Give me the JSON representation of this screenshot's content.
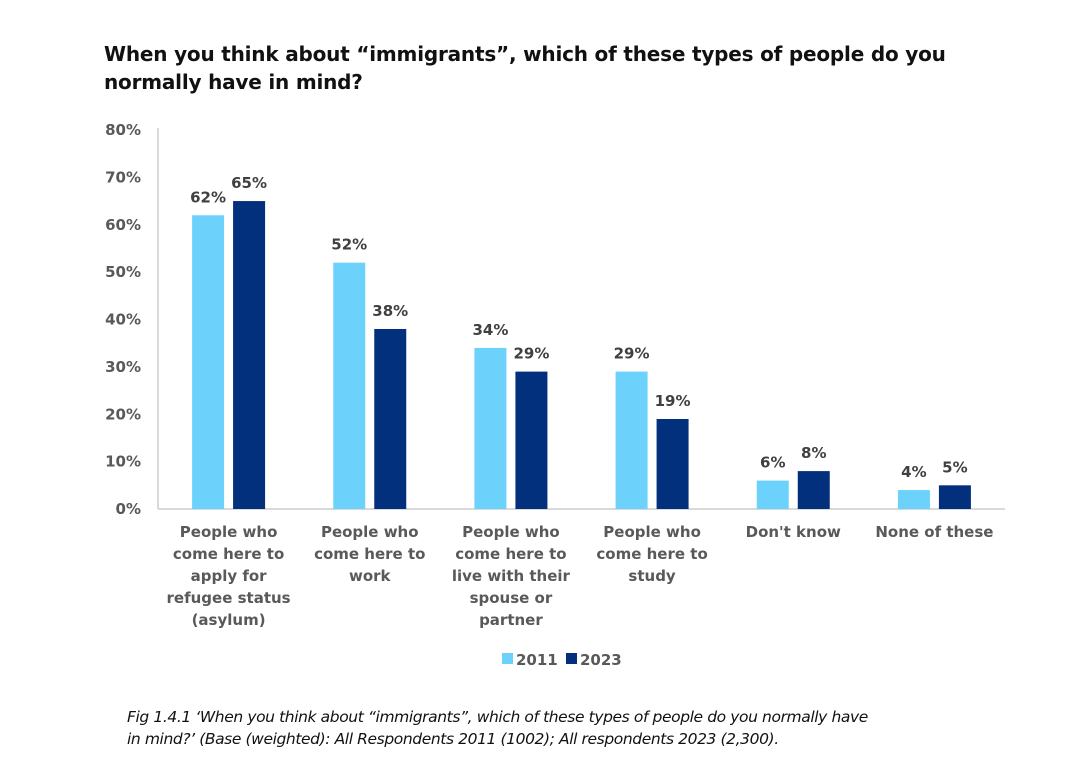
{
  "chart_data": {
    "type": "bar",
    "title": "When you think about “immigrants”, which of these types of people do you normally have in mind?",
    "xlabel": "",
    "ylabel": "",
    "ylim": [
      0,
      80
    ],
    "yticks": [
      0,
      10,
      20,
      30,
      40,
      50,
      60,
      70,
      80
    ],
    "ytick_labels": [
      "0%",
      "10%",
      "20%",
      "30%",
      "40%",
      "50%",
      "60%",
      "70%",
      "80%"
    ],
    "grid": false,
    "legend_position": "bottom",
    "categories": [
      [
        "People who",
        "come here to",
        "apply for",
        "refugee status",
        "(asylum)"
      ],
      [
        "People who",
        "come here to",
        "work"
      ],
      [
        "People who",
        "come here to",
        "live with their",
        "spouse or",
        "partner"
      ],
      [
        "People who",
        "come here to",
        "study"
      ],
      [
        "Don't know"
      ],
      [
        "None of these"
      ]
    ],
    "series": [
      {
        "name": "2011",
        "color": "#6cd2fc",
        "values": [
          62,
          52,
          34,
          29,
          6,
          4
        ],
        "labels": [
          "62%",
          "52%",
          "34%",
          "29%",
          "6%",
          "4%"
        ]
      },
      {
        "name": "2023",
        "color": "#02307c",
        "values": [
          65,
          38,
          29,
          19,
          8,
          5
        ],
        "labels": [
          "65%",
          "38%",
          "29%",
          "19%",
          "8%",
          "5%"
        ]
      }
    ]
  },
  "caption": {
    "line1": "Fig 1.4.1 ‘When you think about “immigrants”, which of these types of people do you normally have",
    "line2": "in mind?’ (Base (weighted): All Respondents 2011 (1002); All respondents 2023 (2,300)."
  }
}
